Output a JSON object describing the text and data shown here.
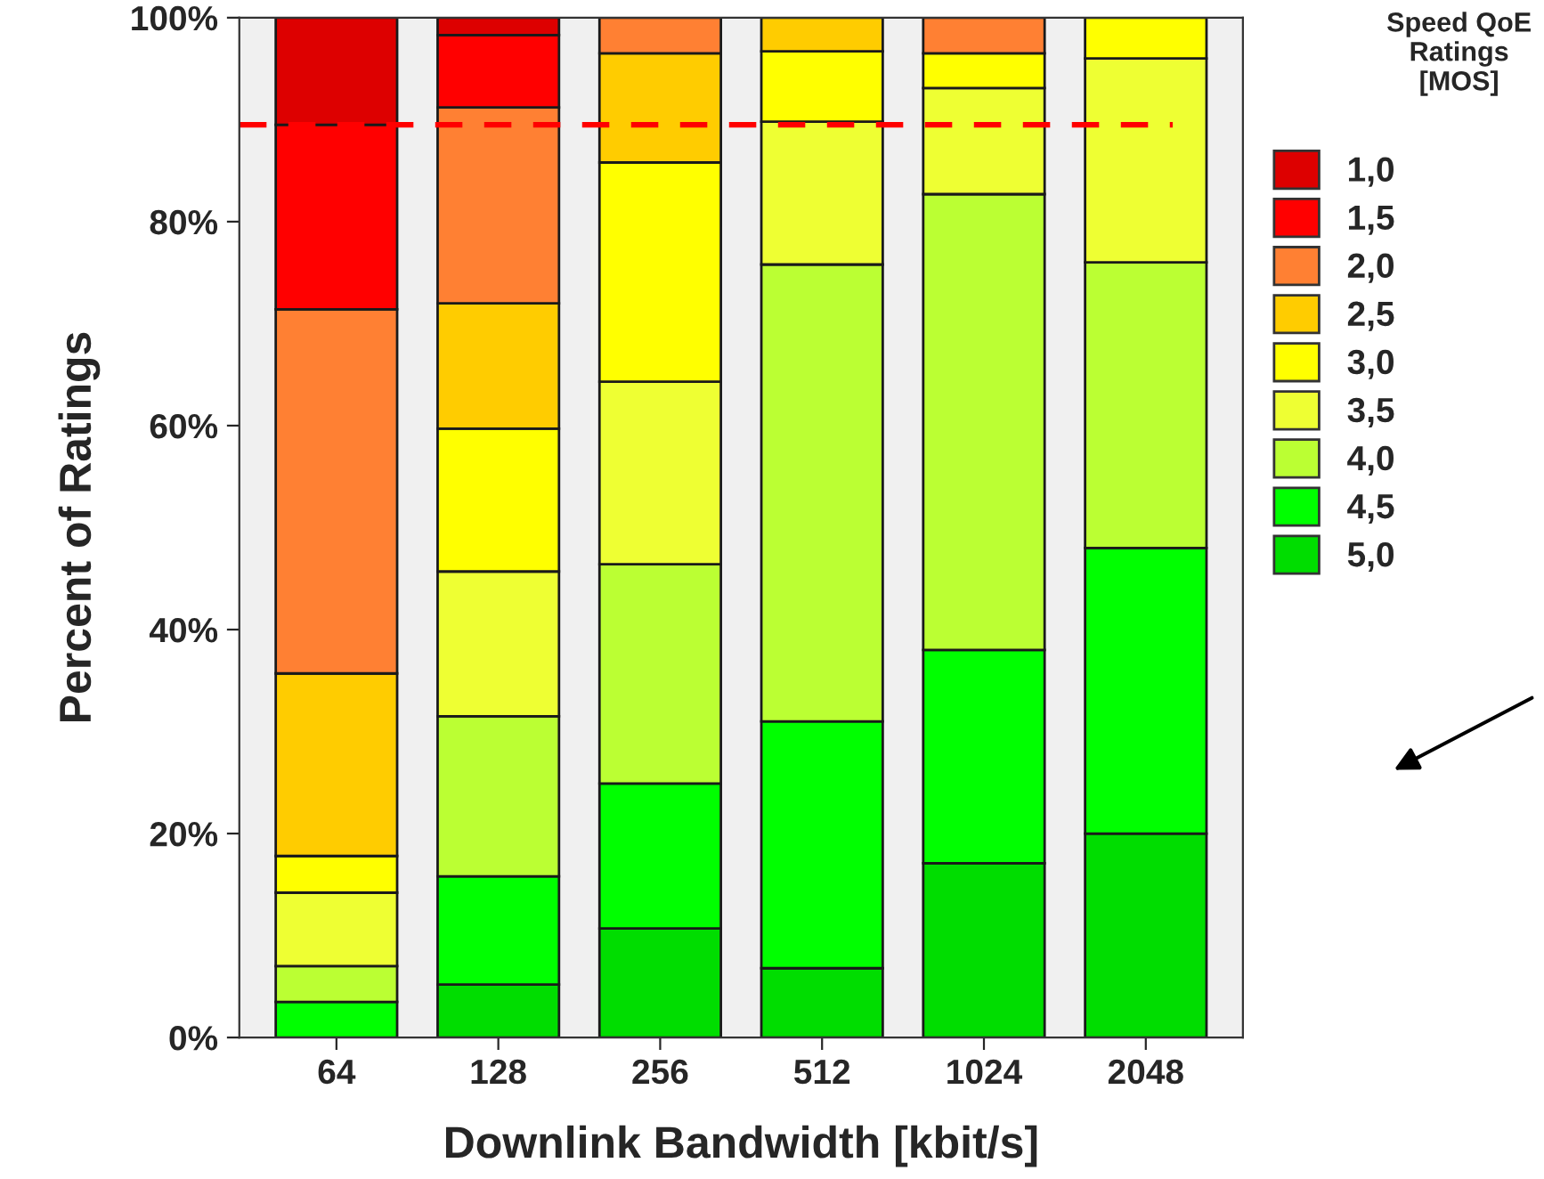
{
  "chart_data": {
    "type": "bar",
    "stacked": true,
    "xlabel": "Downlink Bandwidth [kbit/s]",
    "ylabel": "Percent of Ratings",
    "legend_title": "Speed QoE Ratings [MOS]",
    "legend": "right",
    "categories": [
      "64",
      "128",
      "256",
      "512",
      "1024",
      "2048"
    ],
    "ylim": [
      0,
      100
    ],
    "yticks": [
      {
        "value": 0,
        "label": "0%"
      },
      {
        "value": 20,
        "label": "20%"
      },
      {
        "value": 40,
        "label": "40%"
      },
      {
        "value": 60,
        "label": "60%"
      },
      {
        "value": 80,
        "label": "80%"
      },
      {
        "value": 100,
        "label": "100%"
      }
    ],
    "grid": false,
    "series": [
      {
        "name": "5,0",
        "color": "#00dd00",
        "values": [
          0,
          5.2,
          10.7,
          6.8,
          17.1,
          20.0
        ]
      },
      {
        "name": "4,5",
        "color": "#00ff00",
        "values": [
          3.5,
          10.6,
          14.2,
          24.2,
          20.9,
          28.0
        ]
      },
      {
        "name": "4,0",
        "color": "#bbff33",
        "values": [
          3.5,
          15.7,
          21.5,
          44.8,
          44.7,
          28.0
        ]
      },
      {
        "name": "3,5",
        "color": "#eeff33",
        "values": [
          7.2,
          14.2,
          17.9,
          14.0,
          10.4,
          20.0
        ]
      },
      {
        "name": "3,0",
        "color": "#ffff00",
        "values": [
          3.6,
          14.0,
          21.5,
          6.9,
          3.4,
          4.0
        ]
      },
      {
        "name": "2,5",
        "color": "#ffcc00",
        "values": [
          17.9,
          12.3,
          10.7,
          3.3,
          0,
          0
        ]
      },
      {
        "name": "2,0",
        "color": "#ff8033",
        "values": [
          35.7,
          19.2,
          3.5,
          0,
          3.5,
          0
        ]
      },
      {
        "name": "1,5",
        "color": "#ff0000",
        "values": [
          18.1,
          7.1,
          0,
          0,
          0,
          0
        ]
      },
      {
        "name": "1,0",
        "color": "#dd0000",
        "values": [
          10.5,
          1.7,
          0,
          0,
          0,
          0
        ]
      }
    ],
    "ref_lines": [
      {
        "axis": "y",
        "value": 89.5,
        "color": "#ff0000",
        "line_style": "dashed"
      }
    ]
  }
}
